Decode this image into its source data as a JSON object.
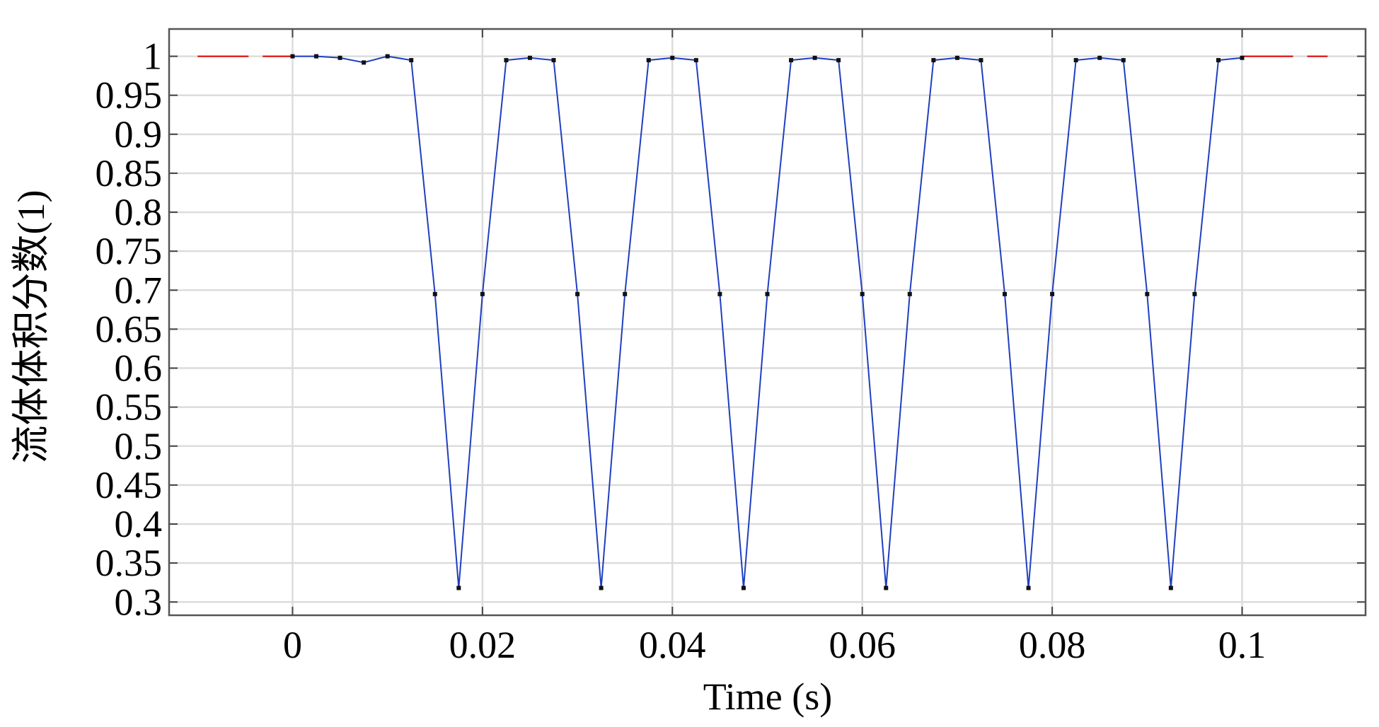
{
  "chart_data": {
    "type": "line",
    "x_label": "Time (s)",
    "y_label": "流体体积分数(1)",
    "xlim": [
      -0.013,
      0.113
    ],
    "ylim": [
      0.283,
      1.035
    ],
    "xticks": [
      0,
      0.02,
      0.04,
      0.06,
      0.08,
      0.1
    ],
    "yticks": [
      0.3,
      0.35,
      0.4,
      0.45,
      0.5,
      0.55,
      0.6,
      0.65,
      0.7,
      0.75,
      0.8,
      0.85,
      0.9,
      0.95,
      1
    ],
    "grid": true,
    "series": [
      {
        "color": "#e00000",
        "dashed": true,
        "markers": false,
        "x": [
          -0.01,
          0,
          null,
          0.1,
          0.109
        ],
        "values": [
          1,
          1,
          null,
          1,
          1
        ]
      },
      {
        "color": "#1f3fbf",
        "dashed": false,
        "markers": true,
        "x": [
          0,
          0.0025,
          0.005,
          0.0075,
          0.01,
          0.0125,
          0.015,
          0.0175,
          0.02,
          0.0225,
          0.025,
          0.0275,
          0.03,
          0.0325,
          0.035,
          0.0375,
          0.04,
          0.0425,
          0.045,
          0.0475,
          0.05,
          0.0525,
          0.055,
          0.0575,
          0.06,
          0.0625,
          0.065,
          0.0675,
          0.07,
          0.0725,
          0.075,
          0.0775,
          0.08,
          0.0825,
          0.085,
          0.0875,
          0.09,
          0.0925,
          0.095,
          0.0975,
          0.1
        ],
        "values": [
          1,
          1,
          0.998,
          0.992,
          1,
          0.995,
          0.695,
          0.318,
          0.695,
          0.995,
          0.998,
          0.995,
          0.695,
          0.318,
          0.695,
          0.995,
          0.998,
          0.995,
          0.695,
          0.318,
          0.695,
          0.995,
          0.998,
          0.995,
          0.695,
          0.318,
          0.695,
          0.995,
          0.998,
          0.995,
          0.695,
          0.318,
          0.695,
          0.995,
          0.998,
          0.995,
          0.695,
          0.318,
          0.695,
          0.995,
          0.998
        ]
      }
    ]
  }
}
